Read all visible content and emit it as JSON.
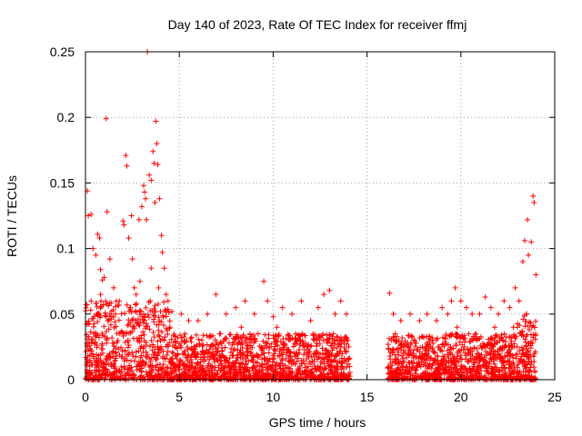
{
  "chart_data": {
    "type": "scatter",
    "title": "Day 140 of 2023, Rate Of TEC Index for receiver ffmj",
    "xlabel": "GPS time / hours",
    "ylabel": "ROTI / TECUs",
    "xlim": [
      0,
      25
    ],
    "ylim": [
      0,
      0.25
    ],
    "grid": true,
    "marker": "+",
    "series_color": "#ff0000",
    "x_ticks": [
      "0",
      "5",
      "10",
      "15",
      "20",
      "25"
    ],
    "y_ticks": [
      "0",
      "0.05",
      "0.1",
      "0.15",
      "0.2",
      "0.25"
    ],
    "data_gap": [
      14.1,
      16.1
    ],
    "series": [
      {
        "name": "ROTI",
        "points": [
          [
            0.1,
            0.144
          ],
          [
            0.15,
            0.125
          ],
          [
            0.3,
            0.126
          ],
          [
            0.4,
            0.1
          ],
          [
            0.55,
            0.095
          ],
          [
            0.65,
            0.111
          ],
          [
            0.75,
            0.108
          ],
          [
            0.8,
            0.084
          ],
          [
            0.9,
            0.076
          ],
          [
            1.0,
            0.078
          ],
          [
            1.1,
            0.199
          ],
          [
            1.15,
            0.128
          ],
          [
            1.3,
            0.092
          ],
          [
            1.5,
            0.07
          ],
          [
            1.8,
            0.06
          ],
          [
            2.0,
            0.121
          ],
          [
            2.05,
            0.118
          ],
          [
            2.15,
            0.171
          ],
          [
            2.2,
            0.163
          ],
          [
            2.3,
            0.108
          ],
          [
            2.45,
            0.125
          ],
          [
            2.5,
            0.092
          ],
          [
            2.6,
            0.07
          ],
          [
            2.7,
            0.065
          ],
          [
            2.85,
            0.122
          ],
          [
            3.0,
            0.132
          ],
          [
            3.1,
            0.148
          ],
          [
            3.15,
            0.143
          ],
          [
            3.2,
            0.138
          ],
          [
            3.25,
            0.122
          ],
          [
            3.3,
            0.25
          ],
          [
            3.4,
            0.156
          ],
          [
            3.5,
            0.152
          ],
          [
            3.6,
            0.174
          ],
          [
            3.65,
            0.165
          ],
          [
            3.7,
            0.135
          ],
          [
            3.75,
            0.197
          ],
          [
            3.8,
            0.18
          ],
          [
            3.85,
            0.164
          ],
          [
            3.95,
            0.138
          ],
          [
            4.05,
            0.11
          ],
          [
            4.1,
            0.097
          ],
          [
            4.2,
            0.085
          ],
          [
            4.4,
            0.06
          ],
          [
            4.6,
            0.052
          ],
          [
            5.1,
            0.05
          ],
          [
            5.5,
            0.045
          ],
          [
            6.0,
            0.045
          ],
          [
            6.5,
            0.05
          ],
          [
            6.95,
            0.065
          ],
          [
            7.5,
            0.05
          ],
          [
            8.0,
            0.055
          ],
          [
            8.5,
            0.06
          ],
          [
            9.0,
            0.05
          ],
          [
            9.5,
            0.075
          ],
          [
            9.7,
            0.06
          ],
          [
            10.0,
            0.048
          ],
          [
            10.5,
            0.055
          ],
          [
            11.0,
            0.05
          ],
          [
            11.5,
            0.06
          ],
          [
            12.0,
            0.045
          ],
          [
            12.4,
            0.055
          ],
          [
            12.7,
            0.065
          ],
          [
            13.0,
            0.068
          ],
          [
            13.3,
            0.05
          ],
          [
            13.6,
            0.06
          ],
          [
            13.9,
            0.05
          ],
          [
            16.2,
            0.066
          ],
          [
            16.4,
            0.05
          ],
          [
            16.8,
            0.045
          ],
          [
            17.3,
            0.05
          ],
          [
            17.8,
            0.045
          ],
          [
            18.2,
            0.05
          ],
          [
            18.7,
            0.045
          ],
          [
            19.0,
            0.055
          ],
          [
            19.3,
            0.05
          ],
          [
            19.5,
            0.06
          ],
          [
            19.7,
            0.07
          ],
          [
            20.0,
            0.06
          ],
          [
            20.3,
            0.055
          ],
          [
            20.6,
            0.05
          ],
          [
            21.0,
            0.05
          ],
          [
            21.3,
            0.063
          ],
          [
            21.6,
            0.055
          ],
          [
            22.0,
            0.05
          ],
          [
            22.3,
            0.06
          ],
          [
            22.6,
            0.055
          ],
          [
            22.9,
            0.07
          ],
          [
            23.1,
            0.06
          ],
          [
            23.3,
            0.09
          ],
          [
            23.4,
            0.106
          ],
          [
            23.55,
            0.122
          ],
          [
            23.6,
            0.095
          ],
          [
            23.75,
            0.105
          ],
          [
            23.85,
            0.14
          ],
          [
            23.9,
            0.135
          ],
          [
            24.0,
            0.08
          ],
          [
            0.6,
            0.05
          ],
          [
            1.2,
            0.045
          ],
          [
            2.4,
            0.055
          ],
          [
            3.45,
            0.06
          ],
          [
            4.5,
            0.04
          ],
          [
            5.3,
            0.035
          ],
          [
            6.2,
            0.03
          ],
          [
            7.2,
            0.035
          ],
          [
            8.3,
            0.04
          ],
          [
            9.2,
            0.035
          ],
          [
            10.2,
            0.04
          ],
          [
            11.2,
            0.035
          ],
          [
            12.2,
            0.03
          ],
          [
            13.2,
            0.035
          ],
          [
            13.8,
            0.03
          ],
          [
            16.5,
            0.035
          ],
          [
            17.5,
            0.03
          ],
          [
            18.5,
            0.03
          ],
          [
            19.8,
            0.04
          ],
          [
            20.8,
            0.035
          ],
          [
            21.8,
            0.04
          ],
          [
            22.8,
            0.04
          ],
          [
            23.5,
            0.05
          ],
          [
            0.3,
            0.06
          ],
          [
            0.8,
            0.065
          ],
          [
            1.6,
            0.05
          ],
          [
            2.9,
            0.075
          ],
          [
            3.5,
            0.085
          ],
          [
            3.9,
            0.07
          ],
          [
            4.3,
            0.065
          ]
        ]
      }
    ]
  }
}
